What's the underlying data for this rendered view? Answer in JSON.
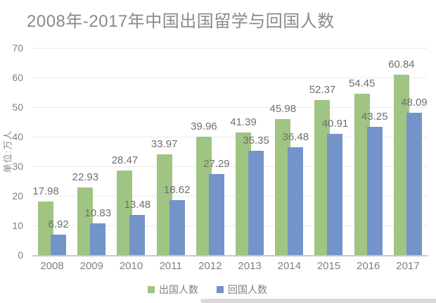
{
  "chart_data": {
    "type": "bar",
    "title": "2008年-2017年中国出国留学与回国人数",
    "ylabel": "单位:万人",
    "xlabel": "",
    "categories": [
      "2008",
      "2009",
      "2010",
      "2011",
      "2012",
      "2013",
      "2014",
      "2015",
      "2016",
      "2017"
    ],
    "series": [
      {
        "name": "出国人数",
        "color": "#A0C482",
        "values": [
          17.98,
          22.93,
          28.47,
          33.97,
          39.96,
          41.39,
          45.98,
          52.37,
          54.45,
          60.84
        ]
      },
      {
        "name": "回国人数",
        "color": "#7394C8",
        "values": [
          6.92,
          10.83,
          13.48,
          18.62,
          27.29,
          35.35,
          36.48,
          40.91,
          43.25,
          48.09
        ]
      }
    ],
    "ylim": [
      0,
      70
    ],
    "yticks": [
      0,
      10,
      20,
      30,
      40,
      50,
      60,
      70
    ],
    "grid": true,
    "legend_position": "bottom",
    "data_labels_visible": true
  },
  "colors": {
    "background": "#FFFFFF",
    "title_text": "#8A8A8A",
    "axis_text": "#808080",
    "data_label_text": "#6F6F6F",
    "gridline": "#EBEBEB",
    "axis_line": "#C9C9C9",
    "series_abroad": "#A0C482",
    "series_return": "#7394C8",
    "bottom_strip": "#D9D9D9"
  }
}
